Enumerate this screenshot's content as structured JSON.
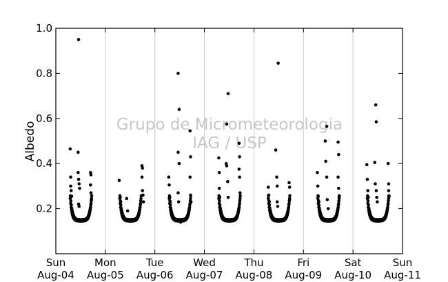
{
  "chart_data": {
    "type": "scatter",
    "ylabel": "Albedo",
    "ylim": [
      0.0,
      1.0
    ],
    "yticks": [
      0.2,
      0.4,
      0.6,
      0.8,
      1.0
    ],
    "ytick_labels": [
      "0.2",
      "0.4",
      "0.6",
      "0.8",
      "1.0"
    ],
    "xlim": [
      0,
      7
    ],
    "xtick_labels": [
      {
        "day": "Sun",
        "date": "Aug-04"
      },
      {
        "day": "Mon",
        "date": "Aug-05"
      },
      {
        "day": "Tue",
        "date": "Aug-06"
      },
      {
        "day": "Wed",
        "date": "Aug-07"
      },
      {
        "day": "Thu",
        "date": "Aug-08"
      },
      {
        "day": "Fri",
        "date": "Aug-09"
      },
      {
        "day": "Sat",
        "date": "Aug-10"
      },
      {
        "day": "Sun",
        "date": "Aug-11"
      }
    ],
    "vertical_grid": true,
    "marker_color": "#000000",
    "watermark": [
      "Grupo de Micrometeorologia",
      "IAG / USP"
    ],
    "series": [
      {
        "points": [
          [
            0.29,
            0.465
          ],
          [
            0.3,
            0.34
          ],
          [
            0.3,
            0.3
          ],
          [
            0.31,
            0.28
          ],
          [
            0.32,
            0.255
          ],
          [
            0.46,
            0.95
          ],
          [
            0.45,
            0.45
          ],
          [
            0.45,
            0.36
          ],
          [
            0.46,
            0.33
          ],
          [
            0.47,
            0.31
          ],
          [
            0.48,
            0.29
          ],
          [
            0.46,
            0.22
          ],
          [
            0.47,
            0.21
          ],
          [
            0.7,
            0.36
          ],
          [
            0.71,
            0.35
          ],
          [
            0.7,
            0.305
          ],
          [
            0.71,
            0.27
          ],
          [
            0.72,
            0.24
          ],
          [
            1.28,
            0.325
          ],
          [
            1.3,
            0.25
          ],
          [
            1.31,
            0.23
          ],
          [
            1.43,
            0.245
          ],
          [
            1.45,
            0.19
          ],
          [
            1.74,
            0.39
          ],
          [
            1.75,
            0.38
          ],
          [
            1.74,
            0.34
          ],
          [
            1.75,
            0.28
          ],
          [
            1.76,
            0.26
          ],
          [
            1.77,
            0.23
          ],
          [
            2.28,
            0.34
          ],
          [
            2.29,
            0.305
          ],
          [
            2.3,
            0.25
          ],
          [
            2.31,
            0.23
          ],
          [
            2.47,
            0.8
          ],
          [
            2.49,
            0.64
          ],
          [
            2.47,
            0.45
          ],
          [
            2.49,
            0.4
          ],
          [
            2.47,
            0.27
          ],
          [
            2.48,
            0.23
          ],
          [
            2.52,
            0.14
          ],
          [
            2.71,
            0.545
          ],
          [
            2.72,
            0.43
          ],
          [
            2.71,
            0.34
          ],
          [
            2.72,
            0.26
          ],
          [
            2.73,
            0.23
          ],
          [
            3.29,
            0.425
          ],
          [
            3.3,
            0.36
          ],
          [
            3.3,
            0.29
          ],
          [
            3.31,
            0.25
          ],
          [
            3.44,
            0.4
          ],
          [
            3.45,
            0.39
          ],
          [
            3.45,
            0.575
          ],
          [
            3.48,
            0.71
          ],
          [
            3.47,
            0.32
          ],
          [
            3.48,
            0.25
          ],
          [
            3.7,
            0.49
          ],
          [
            3.71,
            0.43
          ],
          [
            3.7,
            0.375
          ],
          [
            3.71,
            0.34
          ],
          [
            3.72,
            0.27
          ],
          [
            4.29,
            0.295
          ],
          [
            4.3,
            0.26
          ],
          [
            4.31,
            0.23
          ],
          [
            4.44,
            0.46
          ],
          [
            4.46,
            0.34
          ],
          [
            4.47,
            0.3
          ],
          [
            4.49,
            0.845
          ],
          [
            4.47,
            0.23
          ],
          [
            4.48,
            0.21
          ],
          [
            4.71,
            0.315
          ],
          [
            4.72,
            0.295
          ],
          [
            4.72,
            0.24
          ],
          [
            5.28,
            0.36
          ],
          [
            5.29,
            0.3
          ],
          [
            5.3,
            0.255
          ],
          [
            5.31,
            0.23
          ],
          [
            5.44,
            0.5
          ],
          [
            5.45,
            0.41
          ],
          [
            5.47,
            0.565
          ],
          [
            5.47,
            0.34
          ],
          [
            5.48,
            0.24
          ],
          [
            5.5,
            0.2
          ],
          [
            5.7,
            0.495
          ],
          [
            5.71,
            0.44
          ],
          [
            5.7,
            0.34
          ],
          [
            5.71,
            0.29
          ],
          [
            5.72,
            0.25
          ],
          [
            6.28,
            0.395
          ],
          [
            6.29,
            0.33
          ],
          [
            6.3,
            0.28
          ],
          [
            6.31,
            0.25
          ],
          [
            6.44,
            0.405
          ],
          [
            6.45,
            0.31
          ],
          [
            6.46,
            0.66
          ],
          [
            6.47,
            0.585
          ],
          [
            6.47,
            0.28
          ],
          [
            6.48,
            0.25
          ],
          [
            6.49,
            0.23
          ],
          [
            6.71,
            0.4
          ],
          [
            6.72,
            0.31
          ],
          [
            6.72,
            0.28
          ],
          [
            6.73,
            0.255
          ]
        ]
      }
    ]
  }
}
